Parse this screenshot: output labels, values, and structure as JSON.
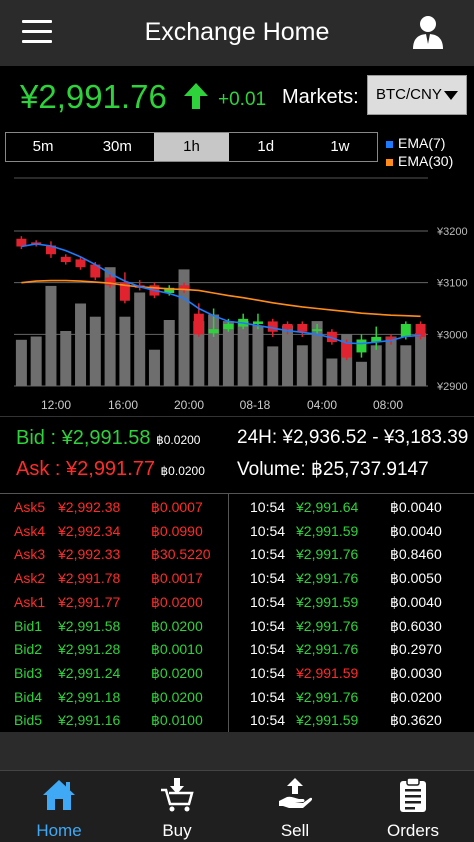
{
  "header": {
    "title": "Exchange Home"
  },
  "ticker": {
    "price": "¥2,991.76",
    "change": "+0.01",
    "markets_label": "Markets:",
    "market_selected": "BTC/CNY"
  },
  "chart": {
    "tabs": [
      "5m",
      "30m",
      "1h",
      "1d",
      "1w"
    ],
    "active_tab": "1h",
    "legend": [
      {
        "label": "EMA(7)",
        "color": "#1e7bff"
      },
      {
        "label": "EMA(30)",
        "color": "#ff8c1a"
      }
    ],
    "y_ticks": [
      "¥3200",
      "¥3100",
      "¥3000",
      "¥2900"
    ],
    "x_ticks": [
      "12:00",
      "16:00",
      "20:00",
      "08-18",
      "04:00",
      "08:00"
    ]
  },
  "chart_data": {
    "type": "candlestick",
    "ylim": [
      2900,
      3200
    ],
    "y_ticks": [
      3200,
      3100,
      3000,
      2900
    ],
    "x_ticks": [
      "12:00",
      "16:00",
      "20:00",
      "08-18",
      "04:00",
      "08:00"
    ],
    "candles": [
      {
        "o": 3185,
        "c": 3170,
        "h": 3190,
        "l": 3165
      },
      {
        "o": 3178,
        "c": 3176,
        "h": 3182,
        "l": 3170
      },
      {
        "o": 3172,
        "c": 3155,
        "h": 3180,
        "l": 3148
      },
      {
        "o": 3150,
        "c": 3140,
        "h": 3155,
        "l": 3135
      },
      {
        "o": 3145,
        "c": 3130,
        "h": 3150,
        "l": 3125
      },
      {
        "o": 3135,
        "c": 3110,
        "h": 3140,
        "l": 3105
      },
      {
        "o": 3110,
        "c": 3095,
        "h": 3120,
        "l": 3090
      },
      {
        "o": 3100,
        "c": 3065,
        "h": 3120,
        "l": 3060
      },
      {
        "o": 3095,
        "c": 3090,
        "h": 3105,
        "l": 3085
      },
      {
        "o": 3095,
        "c": 3075,
        "h": 3100,
        "l": 3070
      },
      {
        "o": 3080,
        "c": 3090,
        "h": 3095,
        "l": 3075
      },
      {
        "o": 3095,
        "c": 3085,
        "h": 3100,
        "l": 3080
      },
      {
        "o": 3040,
        "c": 3000,
        "h": 3060,
        "l": 2995
      },
      {
        "o": 3002,
        "c": 3010,
        "h": 3050,
        "l": 2995
      },
      {
        "o": 3010,
        "c": 3020,
        "h": 3030,
        "l": 3005
      },
      {
        "o": 3015,
        "c": 3030,
        "h": 3040,
        "l": 3010
      },
      {
        "o": 3020,
        "c": 3025,
        "h": 3040,
        "l": 3010
      },
      {
        "o": 3025,
        "c": 3005,
        "h": 3030,
        "l": 2995
      },
      {
        "o": 3020,
        "c": 3010,
        "h": 3025,
        "l": 3000
      },
      {
        "o": 3020,
        "c": 3005,
        "h": 3025,
        "l": 2995
      },
      {
        "o": 3010,
        "c": 3010,
        "h": 3020,
        "l": 3000
      },
      {
        "o": 3005,
        "c": 2985,
        "h": 3010,
        "l": 2980
      },
      {
        "o": 2985,
        "c": 2955,
        "h": 2990,
        "l": 2950
      },
      {
        "o": 2965,
        "c": 2990,
        "h": 3000,
        "l": 2955
      },
      {
        "o": 2985,
        "c": 2995,
        "h": 3015,
        "l": 2970
      },
      {
        "o": 2995,
        "c": 2990,
        "h": 3000,
        "l": 2980
      },
      {
        "o": 2995,
        "c": 3020,
        "h": 3025,
        "l": 2990
      },
      {
        "o": 3020,
        "c": 2995,
        "h": 3025,
        "l": 2990
      }
    ],
    "volume_bars": [
      0.42,
      0.45,
      0.91,
      0.5,
      0.75,
      0.63,
      1.08,
      0.63,
      0.85,
      0.33,
      0.6,
      1.06,
      0.59,
      0.65,
      0.59,
      0.59,
      0.55,
      0.36,
      0.55,
      0.37,
      0.59,
      0.25,
      0.47,
      0.22,
      0.37,
      0.45,
      0.37,
      0.48
    ],
    "ema7": [
      3170,
      3175,
      3171,
      3162,
      3150,
      3135,
      3118,
      3103,
      3092,
      3085,
      3079,
      3070,
      3050,
      3036,
      3025,
      3022,
      3017,
      3012,
      3007,
      3004,
      3000,
      2993,
      2983,
      2982,
      2985,
      2988,
      2996,
      2998
    ],
    "ema30": [
      3100,
      3103,
      3104,
      3104,
      3103,
      3101,
      3099,
      3095,
      3092,
      3090,
      3088,
      3087,
      3085,
      3080,
      3075,
      3071,
      3066,
      3061,
      3057,
      3053,
      3050,
      3047,
      3044,
      3041,
      3039,
      3037,
      3036,
      3035
    ],
    "colors": {
      "up": "#2ed33b",
      "down": "#e0232e",
      "volume": "#6e6e6e",
      "ema7": "#1e7bff",
      "ema30": "#ff8c1a"
    }
  },
  "stats": {
    "bid_label": "Bid : ¥2,991.58",
    "bid_qty": "฿0.0200",
    "ask_label": "Ask : ¥2,991.77",
    "ask_qty": "฿0.0200",
    "range_24h": "24H: ¥2,936.52 - ¥3,183.39",
    "volume": "Volume: ฿25,737.9147"
  },
  "orderbook": [
    {
      "name": "Ask5",
      "price": "¥2,992.38",
      "qty": "฿0.0007",
      "side": "ask"
    },
    {
      "name": "Ask4",
      "price": "¥2,992.34",
      "qty": "฿0.0990",
      "side": "ask"
    },
    {
      "name": "Ask3",
      "price": "¥2,992.33",
      "qty": "฿30.5220",
      "side": "ask"
    },
    {
      "name": "Ask2",
      "price": "¥2,991.78",
      "qty": "฿0.0017",
      "side": "ask"
    },
    {
      "name": "Ask1",
      "price": "¥2,991.77",
      "qty": "฿0.0200",
      "side": "ask"
    },
    {
      "name": "Bid1",
      "price": "¥2,991.58",
      "qty": "฿0.0200",
      "side": "bid"
    },
    {
      "name": "Bid2",
      "price": "¥2,991.28",
      "qty": "฿0.0010",
      "side": "bid"
    },
    {
      "name": "Bid3",
      "price": "¥2,991.24",
      "qty": "฿0.0200",
      "side": "bid"
    },
    {
      "name": "Bid4",
      "price": "¥2,991.18",
      "qty": "฿0.0200",
      "side": "bid"
    },
    {
      "name": "Bid5",
      "price": "¥2,991.16",
      "qty": "฿0.0100",
      "side": "bid"
    }
  ],
  "trades": [
    {
      "time": "10:54",
      "price": "¥2,991.64",
      "qty": "฿0.0040",
      "dir": "up"
    },
    {
      "time": "10:54",
      "price": "¥2,991.59",
      "qty": "฿0.0040",
      "dir": "up"
    },
    {
      "time": "10:54",
      "price": "¥2,991.76",
      "qty": "฿0.8460",
      "dir": "up"
    },
    {
      "time": "10:54",
      "price": "¥2,991.76",
      "qty": "฿0.0050",
      "dir": "up"
    },
    {
      "time": "10:54",
      "price": "¥2,991.59",
      "qty": "฿0.0040",
      "dir": "up"
    },
    {
      "time": "10:54",
      "price": "¥2,991.76",
      "qty": "฿0.6030",
      "dir": "up"
    },
    {
      "time": "10:54",
      "price": "¥2,991.76",
      "qty": "฿0.2970",
      "dir": "up"
    },
    {
      "time": "10:54",
      "price": "¥2,991.59",
      "qty": "฿0.0030",
      "dir": "down"
    },
    {
      "time": "10:54",
      "price": "¥2,991.76",
      "qty": "฿0.0200",
      "dir": "up"
    },
    {
      "time": "10:54",
      "price": "¥2,991.59",
      "qty": "฿0.3620",
      "dir": "up"
    }
  ],
  "nav": [
    {
      "label": "Home",
      "icon": "home-icon",
      "active": true
    },
    {
      "label": "Buy",
      "icon": "buy-cart-icon",
      "active": false
    },
    {
      "label": "Sell",
      "icon": "sell-hand-icon",
      "active": false
    },
    {
      "label": "Orders",
      "icon": "orders-clipboard-icon",
      "active": false
    }
  ]
}
